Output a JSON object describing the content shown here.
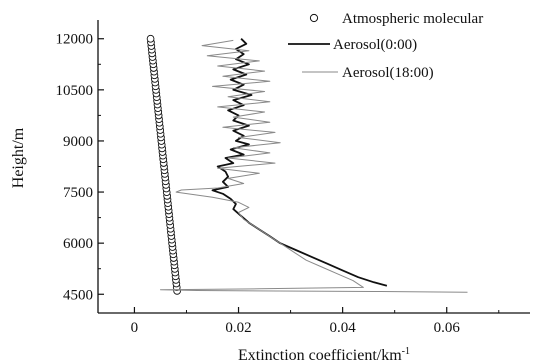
{
  "chart_data": {
    "type": "line",
    "title": "",
    "xlabel": "Extinction coefficient/km",
    "xlabel_sup": "-1",
    "ylabel": "Height/m",
    "xlim": [
      -0.007,
      0.076
    ],
    "ylim": [
      3950,
      12550
    ],
    "x_ticks": [
      0,
      0.02,
      0.04,
      0.06
    ],
    "x_tick_labels": [
      "0",
      "0.02",
      "0.04",
      "0.06"
    ],
    "y_ticks": [
      4500,
      6000,
      7500,
      9000,
      10500,
      12000
    ],
    "y_tick_labels": [
      "4500",
      "6000",
      "7500",
      "9000",
      "10500",
      "12000"
    ],
    "grid": false,
    "legend_position": "top-right",
    "series": [
      {
        "name": "Atmospheric molecular",
        "style": "circles",
        "color": "#111111",
        "height_range": [
          4600,
          12000
        ],
        "x_at_bottom": 0.0082,
        "x_at_top": 0.0031,
        "point_count": 70
      },
      {
        "name": "Aerosol(0:00)",
        "style": "solid",
        "color": "#111111",
        "points": [
          [
            0.0485,
            4750
          ],
          [
            0.046,
            4850
          ],
          [
            0.043,
            5000
          ],
          [
            0.04,
            5200
          ],
          [
            0.037,
            5400
          ],
          [
            0.034,
            5600
          ],
          [
            0.031,
            5800
          ],
          [
            0.028,
            6000
          ],
          [
            0.026,
            6200
          ],
          [
            0.024,
            6400
          ],
          [
            0.022,
            6600
          ],
          [
            0.0205,
            6800
          ],
          [
            0.019,
            7000
          ],
          [
            0.0195,
            7150
          ],
          [
            0.0185,
            7300
          ],
          [
            0.017,
            7450
          ],
          [
            0.015,
            7550
          ],
          [
            0.018,
            7650
          ],
          [
            0.017,
            7800
          ],
          [
            0.018,
            7950
          ],
          [
            0.0175,
            8100
          ],
          [
            0.016,
            8250
          ],
          [
            0.019,
            8350
          ],
          [
            0.0175,
            8500
          ],
          [
            0.021,
            8600
          ],
          [
            0.0185,
            8750
          ],
          [
            0.022,
            8900
          ],
          [
            0.0195,
            9000
          ],
          [
            0.021,
            9150
          ],
          [
            0.019,
            9300
          ],
          [
            0.022,
            9450
          ],
          [
            0.019,
            9600
          ],
          [
            0.02,
            9750
          ],
          [
            0.018,
            9900
          ],
          [
            0.021,
            10050
          ],
          [
            0.019,
            10200
          ],
          [
            0.0225,
            10350
          ],
          [
            0.019,
            10500
          ],
          [
            0.021,
            10650
          ],
          [
            0.0185,
            10800
          ],
          [
            0.0215,
            10950
          ],
          [
            0.019,
            11100
          ],
          [
            0.022,
            11250
          ],
          [
            0.0195,
            11400
          ],
          [
            0.021,
            11550
          ],
          [
            0.0195,
            11700
          ],
          [
            0.0215,
            11850
          ],
          [
            0.0205,
            12000
          ]
        ]
      },
      {
        "name": "Aerosol(18:00)",
        "style": "thin",
        "color": "#8a8a8a",
        "points": [
          [
            0.064,
            4560
          ],
          [
            0.046,
            4580
          ],
          [
            0.012,
            4610
          ],
          [
            0.005,
            4630
          ],
          [
            0.024,
            4660
          ],
          [
            0.044,
            4700
          ],
          [
            0.042,
            4900
          ],
          [
            0.039,
            5100
          ],
          [
            0.036,
            5300
          ],
          [
            0.033,
            5500
          ],
          [
            0.031,
            5700
          ],
          [
            0.029,
            5900
          ],
          [
            0.027,
            6100
          ],
          [
            0.025,
            6300
          ],
          [
            0.023,
            6500
          ],
          [
            0.021,
            6700
          ],
          [
            0.02,
            6900
          ],
          [
            0.022,
            7050
          ],
          [
            0.02,
            7200
          ],
          [
            0.015,
            7350
          ],
          [
            0.008,
            7500
          ],
          [
            0.009,
            7560
          ],
          [
            0.016,
            7620
          ],
          [
            0.021,
            7750
          ],
          [
            0.018,
            7900
          ],
          [
            0.024,
            8050
          ],
          [
            0.016,
            8200
          ],
          [
            0.027,
            8350
          ],
          [
            0.018,
            8500
          ],
          [
            0.026,
            8650
          ],
          [
            0.019,
            8800
          ],
          [
            0.028,
            8950
          ],
          [
            0.02,
            9100
          ],
          [
            0.027,
            9250
          ],
          [
            0.017,
            9400
          ],
          [
            0.026,
            9550
          ],
          [
            0.019,
            9700
          ],
          [
            0.025,
            9850
          ],
          [
            0.016,
            10000
          ],
          [
            0.026,
            10150
          ],
          [
            0.018,
            10300
          ],
          [
            0.025,
            10450
          ],
          [
            0.015,
            10600
          ],
          [
            0.026,
            10750
          ],
          [
            0.017,
            10900
          ],
          [
            0.025,
            11050
          ],
          [
            0.016,
            11200
          ],
          [
            0.024,
            11350
          ],
          [
            0.014,
            11500
          ],
          [
            0.022,
            11650
          ],
          [
            0.013,
            11800
          ],
          [
            0.019,
            11950
          ]
        ]
      }
    ]
  }
}
